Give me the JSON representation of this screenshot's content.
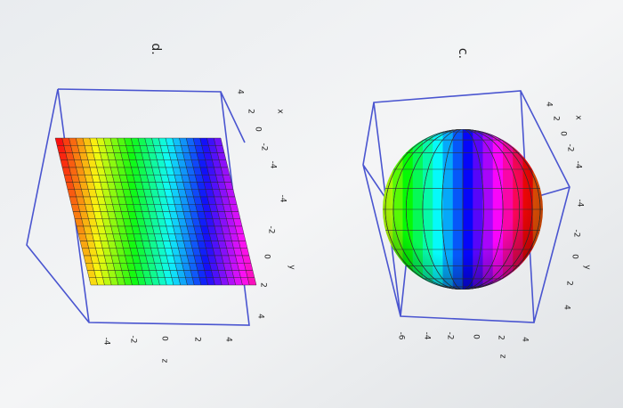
{
  "panels": [
    {
      "label": "c.",
      "x_axis": {
        "label": "x",
        "ticks": [
          "4",
          "2",
          "0",
          "-2",
          "-4"
        ]
      },
      "y_axis": {
        "label": "y",
        "ticks": [
          "-4",
          "-2",
          "0",
          "2",
          "4"
        ]
      },
      "z_axis": {
        "label": "z",
        "ticks": [
          "-6",
          "-4",
          "-2",
          "0",
          "2",
          "4"
        ]
      }
    },
    {
      "label": "d.",
      "x_axis": {
        "label": "x",
        "ticks": [
          "4",
          "2",
          "0",
          "-2",
          "-4"
        ]
      },
      "y_axis": {
        "label": "y",
        "ticks": [
          "-4",
          "-2",
          "0",
          "2",
          "4"
        ]
      },
      "z_axis": {
        "label": "z",
        "ticks": [
          "-4",
          "-2",
          "0",
          "2",
          "4"
        ]
      }
    }
  ]
}
